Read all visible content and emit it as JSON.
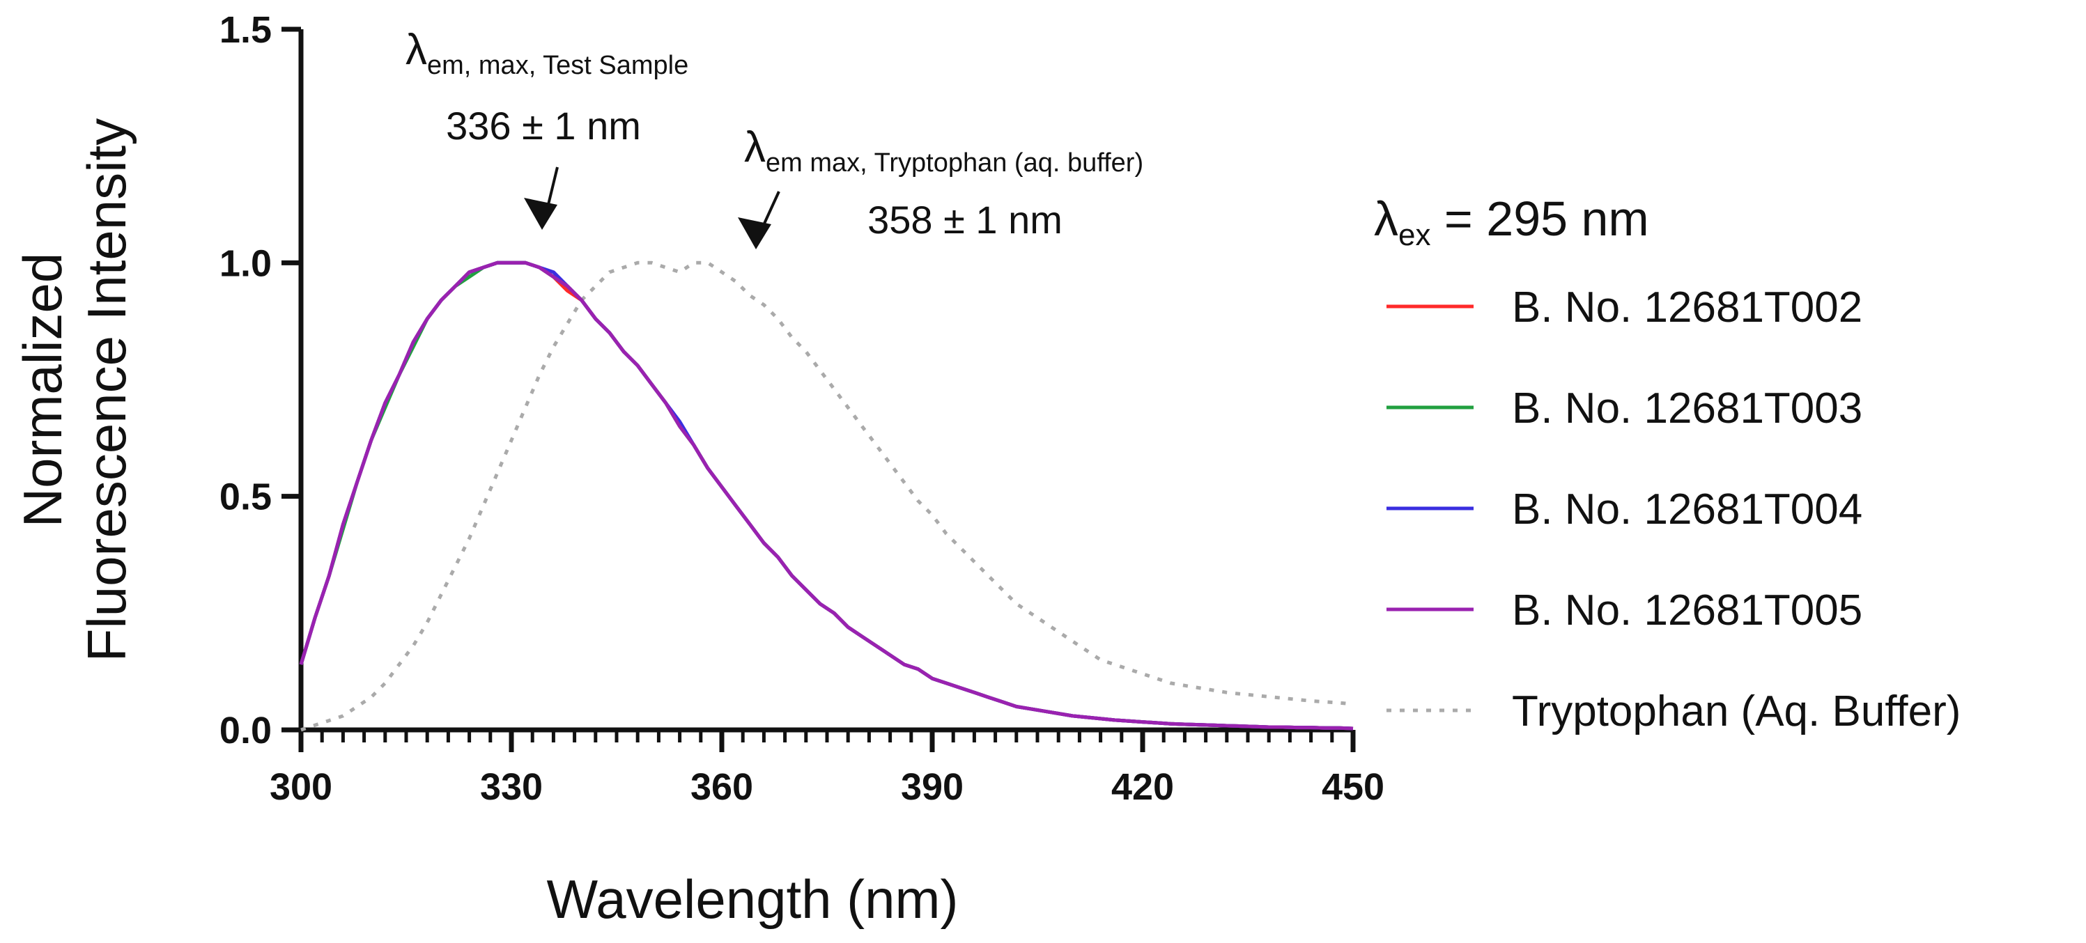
{
  "chart_data": {
    "type": "line",
    "xlabel": "Wavelength (nm)",
    "ylabel_line1": "Normalized",
    "ylabel_line2": "Fluorescence Intensity",
    "xlim": [
      300,
      450
    ],
    "ylim": [
      0,
      1.5
    ],
    "x_ticks": [
      "300",
      "330",
      "360",
      "390",
      "420",
      "450"
    ],
    "y_ticks": [
      "0.0",
      "0.5",
      "1.0",
      "1.5"
    ],
    "x_tick_values": [
      300,
      330,
      360,
      390,
      420,
      450
    ],
    "y_tick_values": [
      0,
      0.5,
      1.0,
      1.5
    ],
    "x_minor_step": 3,
    "grid": false,
    "legend": {
      "placement": "right",
      "title_symbol": "λ",
      "title_sub": "ex",
      "title_rest": " = 295 nm"
    },
    "annotations": [
      {
        "symbol": "λ",
        "sub": "em, max, Test Sample",
        "value": "336 ± 1 nm",
        "x": 336,
        "y": 1.0
      },
      {
        "symbol": "λ",
        "sub": "em max, Tryptophan (aq. buffer)",
        "value": "358 ± 1 nm",
        "x": 358,
        "y": 1.0
      }
    ],
    "x": [
      300,
      302,
      304,
      306,
      308,
      310,
      312,
      314,
      316,
      318,
      320,
      322,
      324,
      326,
      328,
      330,
      332,
      334,
      336,
      338,
      340,
      342,
      344,
      346,
      348,
      350,
      352,
      354,
      356,
      358,
      360,
      362,
      364,
      366,
      368,
      370,
      372,
      374,
      376,
      378,
      380,
      382,
      384,
      386,
      388,
      390,
      392,
      394,
      396,
      398,
      400,
      402,
      404,
      406,
      408,
      410,
      412,
      414,
      416,
      418,
      420,
      422,
      424,
      426,
      428,
      430,
      432,
      434,
      436,
      438,
      440,
      442,
      444,
      446,
      448,
      450
    ],
    "series": [
      {
        "name": "B. No. 12681T002",
        "color": "#ff2a2a",
        "style": "solid",
        "values": [
          0.14,
          0.24,
          0.33,
          0.44,
          0.53,
          0.62,
          0.7,
          0.76,
          0.83,
          0.88,
          0.92,
          0.95,
          0.98,
          0.99,
          1.0,
          1.0,
          1.0,
          0.99,
          0.97,
          0.94,
          0.92,
          0.88,
          0.85,
          0.81,
          0.78,
          0.74,
          0.7,
          0.65,
          0.61,
          0.56,
          0.52,
          0.48,
          0.44,
          0.4,
          0.37,
          0.33,
          0.3,
          0.27,
          0.25,
          0.22,
          0.2,
          0.18,
          0.16,
          0.14,
          0.13,
          0.11,
          0.1,
          0.09,
          0.08,
          0.07,
          0.06,
          0.05,
          0.045,
          0.04,
          0.035,
          0.03,
          0.027,
          0.024,
          0.021,
          0.019,
          0.017,
          0.015,
          0.013,
          0.012,
          0.011,
          0.01,
          0.009,
          0.008,
          0.007,
          0.006,
          0.006,
          0.005,
          0.005,
          0.004,
          0.004,
          0.003
        ]
      },
      {
        "name": "B. No. 12681T003",
        "color": "#22a040",
        "style": "solid",
        "values": [
          0.14,
          0.24,
          0.33,
          0.43,
          0.53,
          0.62,
          0.69,
          0.76,
          0.82,
          0.88,
          0.92,
          0.95,
          0.97,
          0.99,
          1.0,
          1.0,
          1.0,
          0.99,
          0.97,
          0.95,
          0.92,
          0.88,
          0.85,
          0.81,
          0.78,
          0.74,
          0.7,
          0.65,
          0.61,
          0.56,
          0.52,
          0.48,
          0.44,
          0.4,
          0.37,
          0.33,
          0.3,
          0.27,
          0.25,
          0.22,
          0.2,
          0.18,
          0.16,
          0.14,
          0.13,
          0.11,
          0.1,
          0.09,
          0.08,
          0.07,
          0.06,
          0.05,
          0.045,
          0.04,
          0.035,
          0.03,
          0.027,
          0.024,
          0.021,
          0.019,
          0.017,
          0.015,
          0.013,
          0.012,
          0.011,
          0.01,
          0.009,
          0.008,
          0.007,
          0.006,
          0.006,
          0.005,
          0.005,
          0.004,
          0.004,
          0.003
        ]
      },
      {
        "name": "B. No. 12681T004",
        "color": "#3a2ee0",
        "style": "solid",
        "values": [
          0.14,
          0.24,
          0.33,
          0.44,
          0.53,
          0.62,
          0.7,
          0.76,
          0.83,
          0.88,
          0.92,
          0.95,
          0.98,
          0.99,
          1.0,
          1.0,
          1.0,
          0.99,
          0.98,
          0.95,
          0.92,
          0.88,
          0.85,
          0.81,
          0.78,
          0.74,
          0.7,
          0.66,
          0.61,
          0.56,
          0.52,
          0.48,
          0.44,
          0.4,
          0.37,
          0.33,
          0.3,
          0.27,
          0.25,
          0.22,
          0.2,
          0.18,
          0.16,
          0.14,
          0.13,
          0.11,
          0.1,
          0.09,
          0.08,
          0.07,
          0.06,
          0.05,
          0.045,
          0.04,
          0.035,
          0.03,
          0.027,
          0.024,
          0.021,
          0.019,
          0.017,
          0.015,
          0.013,
          0.012,
          0.011,
          0.01,
          0.009,
          0.008,
          0.007,
          0.006,
          0.006,
          0.005,
          0.005,
          0.004,
          0.004,
          0.003
        ]
      },
      {
        "name": "B. No. 12681T005",
        "color": "#9a22b0",
        "style": "solid",
        "values": [
          0.14,
          0.24,
          0.33,
          0.44,
          0.53,
          0.62,
          0.7,
          0.76,
          0.83,
          0.88,
          0.92,
          0.95,
          0.98,
          0.99,
          1.0,
          1.0,
          1.0,
          0.99,
          0.97,
          0.95,
          0.92,
          0.88,
          0.85,
          0.81,
          0.78,
          0.74,
          0.7,
          0.65,
          0.61,
          0.56,
          0.52,
          0.48,
          0.44,
          0.4,
          0.37,
          0.33,
          0.3,
          0.27,
          0.25,
          0.22,
          0.2,
          0.18,
          0.16,
          0.14,
          0.13,
          0.11,
          0.1,
          0.09,
          0.08,
          0.07,
          0.06,
          0.05,
          0.045,
          0.04,
          0.035,
          0.03,
          0.027,
          0.024,
          0.021,
          0.019,
          0.017,
          0.015,
          0.013,
          0.012,
          0.011,
          0.01,
          0.009,
          0.008,
          0.007,
          0.006,
          0.006,
          0.005,
          0.005,
          0.004,
          0.004,
          0.003
        ]
      },
      {
        "name": "Tryptophan (Aq. Buffer)",
        "color": "#aaaaaa",
        "style": "dotted",
        "values": [
          0.0,
          0.01,
          0.02,
          0.03,
          0.05,
          0.07,
          0.1,
          0.14,
          0.18,
          0.23,
          0.29,
          0.35,
          0.41,
          0.48,
          0.55,
          0.62,
          0.69,
          0.76,
          0.82,
          0.87,
          0.92,
          0.95,
          0.98,
          0.99,
          1.0,
          1.0,
          0.99,
          0.98,
          1.0,
          1.0,
          0.98,
          0.96,
          0.93,
          0.91,
          0.88,
          0.84,
          0.81,
          0.77,
          0.73,
          0.69,
          0.65,
          0.61,
          0.57,
          0.53,
          0.49,
          0.46,
          0.42,
          0.39,
          0.36,
          0.33,
          0.3,
          0.27,
          0.25,
          0.23,
          0.21,
          0.19,
          0.17,
          0.15,
          0.14,
          0.13,
          0.12,
          0.11,
          0.1,
          0.095,
          0.09,
          0.085,
          0.08,
          0.077,
          0.074,
          0.071,
          0.068,
          0.065,
          0.062,
          0.06,
          0.058,
          0.055
        ]
      }
    ]
  }
}
